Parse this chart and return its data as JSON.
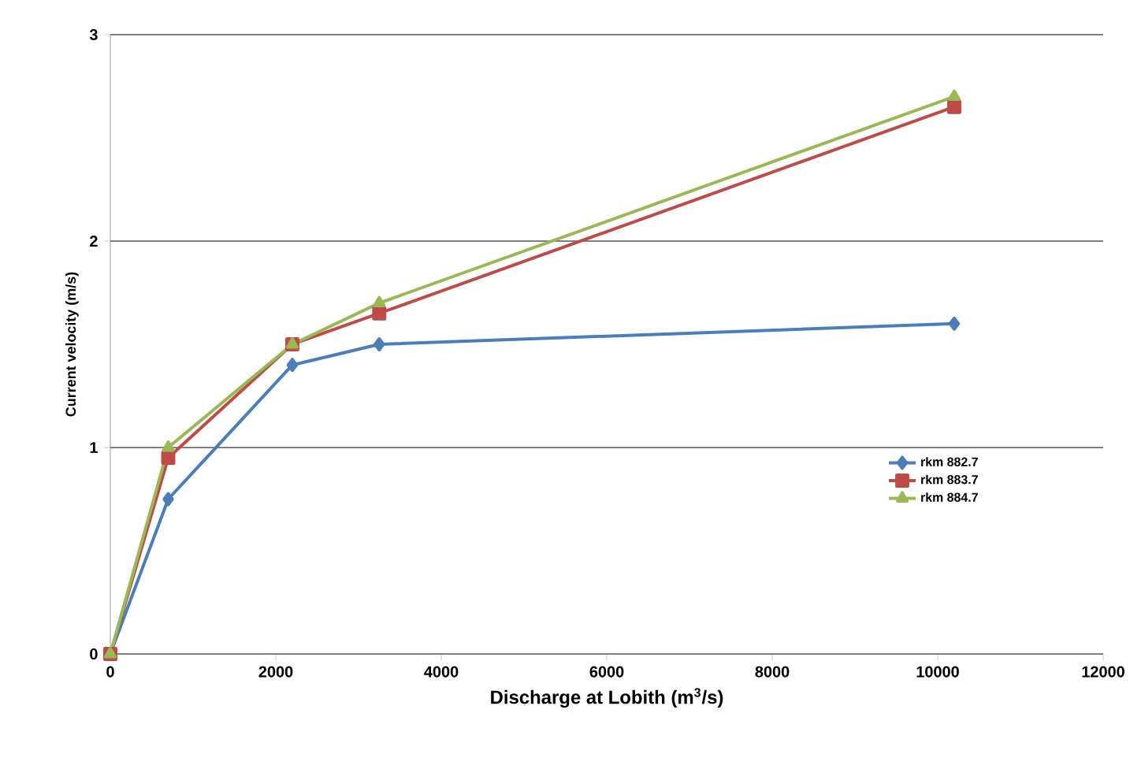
{
  "chart_data": {
    "type": "line",
    "xlabel": "Discharge at Lobith (m$^{3}$/s)",
    "ylabel": "Current velocity (m/s)",
    "xlim": [
      0,
      12000
    ],
    "xticks": [
      0,
      2000,
      4000,
      6000,
      8000,
      10000,
      12000
    ],
    "ylim": [
      0,
      3
    ],
    "yticks": [
      0,
      1,
      2,
      3
    ],
    "grid": "y",
    "legend": "right",
    "x": [
      0,
      700,
      2200,
      3250,
      10200
    ],
    "series": [
      {
        "name": "rkm 882.7",
        "color": "#4a7ebb",
        "marker": "diamond",
        "values": [
          0,
          0.75,
          1.4,
          1.5,
          1.6
        ]
      },
      {
        "name": "rkm 883.7",
        "color": "#be4b48",
        "marker": "square",
        "values": [
          0,
          0.95,
          1.5,
          1.65,
          2.65
        ]
      },
      {
        "name": "rkm 884.7",
        "color": "#98b954",
        "marker": "triangle",
        "values": [
          0,
          1.0,
          1.5,
          1.7,
          2.7
        ]
      }
    ]
  }
}
